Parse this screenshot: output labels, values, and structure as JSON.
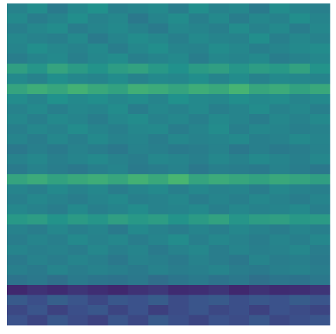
{
  "chart_data": {
    "type": "heatmap",
    "colormap": "viridis",
    "zlim": [
      0,
      1
    ],
    "z": [
      [
        0.44,
        0.48,
        0.41,
        0.46,
        0.5,
        0.43,
        0.45,
        0.47,
        0.42,
        0.49,
        0.44,
        0.46,
        0.41,
        0.48,
        0.45,
        0.43
      ],
      [
        0.47,
        0.42,
        0.45,
        0.49,
        0.44,
        0.46,
        0.4,
        0.45,
        0.48,
        0.43,
        0.47,
        0.42,
        0.46,
        0.44,
        0.49,
        0.45
      ],
      [
        0.43,
        0.46,
        0.48,
        0.42,
        0.45,
        0.47,
        0.44,
        0.41,
        0.46,
        0.45,
        0.43,
        0.48,
        0.44,
        0.47,
        0.42,
        0.46
      ],
      [
        0.46,
        0.44,
        0.43,
        0.47,
        0.41,
        0.45,
        0.48,
        0.46,
        0.43,
        0.47,
        0.45,
        0.44,
        0.49,
        0.43,
        0.46,
        0.44
      ],
      [
        0.45,
        0.49,
        0.46,
        0.44,
        0.47,
        0.42,
        0.46,
        0.49,
        0.45,
        0.44,
        0.48,
        0.46,
        0.43,
        0.45,
        0.47,
        0.48
      ],
      [
        0.42,
        0.45,
        0.47,
        0.43,
        0.46,
        0.48,
        0.43,
        0.45,
        0.47,
        0.42,
        0.46,
        0.45,
        0.47,
        0.42,
        0.44,
        0.46
      ],
      [
        0.56,
        0.52,
        0.58,
        0.54,
        0.51,
        0.55,
        0.57,
        0.53,
        0.5,
        0.54,
        0.56,
        0.52,
        0.55,
        0.53,
        0.57,
        0.51
      ],
      [
        0.47,
        0.44,
        0.49,
        0.46,
        0.45,
        0.48,
        0.44,
        0.47,
        0.46,
        0.49,
        0.45,
        0.48,
        0.44,
        0.47,
        0.46,
        0.45
      ],
      [
        0.58,
        0.62,
        0.59,
        0.64,
        0.6,
        0.57,
        0.63,
        0.61,
        0.58,
        0.62,
        0.6,
        0.65,
        0.59,
        0.61,
        0.57,
        0.6
      ],
      [
        0.48,
        0.45,
        0.5,
        0.47,
        0.49,
        0.46,
        0.48,
        0.45,
        0.5,
        0.47,
        0.46,
        0.49,
        0.47,
        0.48,
        0.45,
        0.47
      ],
      [
        0.44,
        0.47,
        0.43,
        0.46,
        0.45,
        0.48,
        0.42,
        0.46,
        0.44,
        0.47,
        0.43,
        0.45,
        0.48,
        0.44,
        0.46,
        0.43
      ],
      [
        0.46,
        0.43,
        0.47,
        0.45,
        0.42,
        0.46,
        0.48,
        0.44,
        0.46,
        0.43,
        0.47,
        0.45,
        0.42,
        0.46,
        0.44,
        0.47
      ],
      [
        0.43,
        0.46,
        0.44,
        0.48,
        0.45,
        0.43,
        0.46,
        0.47,
        0.42,
        0.45,
        0.48,
        0.43,
        0.46,
        0.45,
        0.43,
        0.44
      ],
      [
        0.45,
        0.42,
        0.46,
        0.43,
        0.47,
        0.44,
        0.45,
        0.42,
        0.46,
        0.44,
        0.45,
        0.47,
        0.43,
        0.44,
        0.47,
        0.45
      ],
      [
        0.4,
        0.43,
        0.41,
        0.44,
        0.42,
        0.4,
        0.44,
        0.43,
        0.41,
        0.42,
        0.44,
        0.4,
        0.43,
        0.41,
        0.42,
        0.44
      ],
      [
        0.44,
        0.46,
        0.43,
        0.45,
        0.47,
        0.44,
        0.42,
        0.46,
        0.45,
        0.43,
        0.46,
        0.44,
        0.47,
        0.45,
        0.43,
        0.46
      ],
      [
        0.41,
        0.44,
        0.42,
        0.4,
        0.43,
        0.45,
        0.41,
        0.42,
        0.44,
        0.4,
        0.43,
        0.42,
        0.41,
        0.44,
        0.42,
        0.4
      ],
      [
        0.58,
        0.61,
        0.57,
        0.6,
        0.62,
        0.59,
        0.64,
        0.6,
        0.66,
        0.58,
        0.61,
        0.59,
        0.57,
        0.6,
        0.58,
        0.56
      ],
      [
        0.45,
        0.43,
        0.47,
        0.44,
        0.46,
        0.42,
        0.45,
        0.47,
        0.43,
        0.46,
        0.44,
        0.45,
        0.42,
        0.46,
        0.44,
        0.43
      ],
      [
        0.43,
        0.46,
        0.44,
        0.42,
        0.45,
        0.47,
        0.43,
        0.44,
        0.46,
        0.42,
        0.45,
        0.43,
        0.46,
        0.44,
        0.42,
        0.45
      ],
      [
        0.46,
        0.44,
        0.42,
        0.47,
        0.43,
        0.45,
        0.48,
        0.44,
        0.45,
        0.47,
        0.43,
        0.46,
        0.44,
        0.45,
        0.47,
        0.43
      ],
      [
        0.53,
        0.55,
        0.51,
        0.54,
        0.52,
        0.56,
        0.53,
        0.55,
        0.51,
        0.54,
        0.57,
        0.52,
        0.55,
        0.56,
        0.53,
        0.54
      ],
      [
        0.44,
        0.42,
        0.46,
        0.43,
        0.45,
        0.41,
        0.47,
        0.44,
        0.42,
        0.45,
        0.43,
        0.46,
        0.44,
        0.42,
        0.45,
        0.43
      ],
      [
        0.42,
        0.45,
        0.43,
        0.47,
        0.44,
        0.46,
        0.42,
        0.45,
        0.48,
        0.43,
        0.46,
        0.44,
        0.42,
        0.45,
        0.43,
        0.46
      ],
      [
        0.45,
        0.43,
        0.44,
        0.42,
        0.46,
        0.43,
        0.45,
        0.41,
        0.44,
        0.46,
        0.42,
        0.45,
        0.43,
        0.44,
        0.46,
        0.42
      ],
      [
        0.41,
        0.44,
        0.42,
        0.45,
        0.43,
        0.4,
        0.44,
        0.43,
        0.41,
        0.44,
        0.42,
        0.4,
        0.45,
        0.42,
        0.43,
        0.41
      ],
      [
        0.43,
        0.41,
        0.45,
        0.42,
        0.44,
        0.43,
        0.41,
        0.44,
        0.42,
        0.43,
        0.45,
        0.42,
        0.41,
        0.43,
        0.44,
        0.42
      ],
      [
        0.38,
        0.4,
        0.37,
        0.41,
        0.39,
        0.38,
        0.4,
        0.36,
        0.39,
        0.41,
        0.38,
        0.4,
        0.37,
        0.39,
        0.38,
        0.4
      ],
      [
        0.12,
        0.15,
        0.13,
        0.16,
        0.14,
        0.12,
        0.15,
        0.17,
        0.13,
        0.14,
        0.16,
        0.12,
        0.15,
        0.13,
        0.14,
        0.16
      ],
      [
        0.28,
        0.24,
        0.3,
        0.26,
        0.22,
        0.27,
        0.25,
        0.29,
        0.23,
        0.26,
        0.28,
        0.24,
        0.27,
        0.25,
        0.29,
        0.26
      ],
      [
        0.22,
        0.26,
        0.2,
        0.24,
        0.27,
        0.21,
        0.25,
        0.19,
        0.23,
        0.26,
        0.22,
        0.24,
        0.2,
        0.25,
        0.23,
        0.21
      ],
      [
        0.25,
        0.21,
        0.27,
        0.23,
        0.2,
        0.26,
        0.22,
        0.28,
        0.24,
        0.21,
        0.25,
        0.23,
        0.27,
        0.22,
        0.24,
        0.26
      ]
    ]
  }
}
